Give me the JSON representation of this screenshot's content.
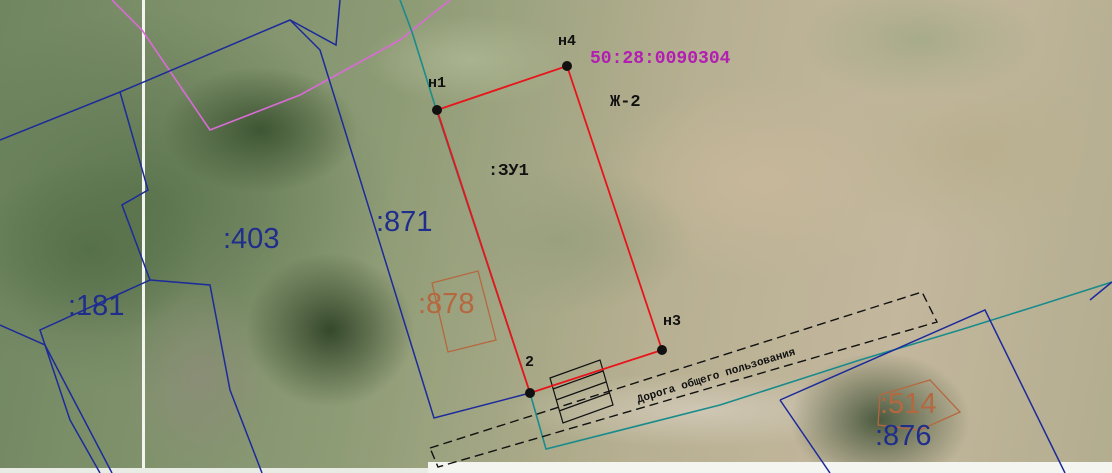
{
  "map": {
    "cadastral_block": "50:28:0090304",
    "zone_code": "Ж-2",
    "new_parcel_label": ":ЗУ1",
    "road_label": "Дорога общего пользования",
    "points": {
      "n1": "н1",
      "n2": "2",
      "n3": "н3",
      "n4": "н4"
    },
    "parcels": {
      "p181": ":181",
      "p403": ":403",
      "p871": ":871",
      "p876": ":876"
    },
    "zones": {
      "z878": ":878",
      "z514": ":514"
    },
    "colors": {
      "boundary_new_parcel": "#e8141a",
      "existing_parcel_lines": "#1c2a9a",
      "block_boundary": "#1a8b8b",
      "zone_boundary": "#d96bd6",
      "building_outline": "#b5683f",
      "road_dashed": "#111111",
      "block_label": "#b21db2"
    }
  }
}
